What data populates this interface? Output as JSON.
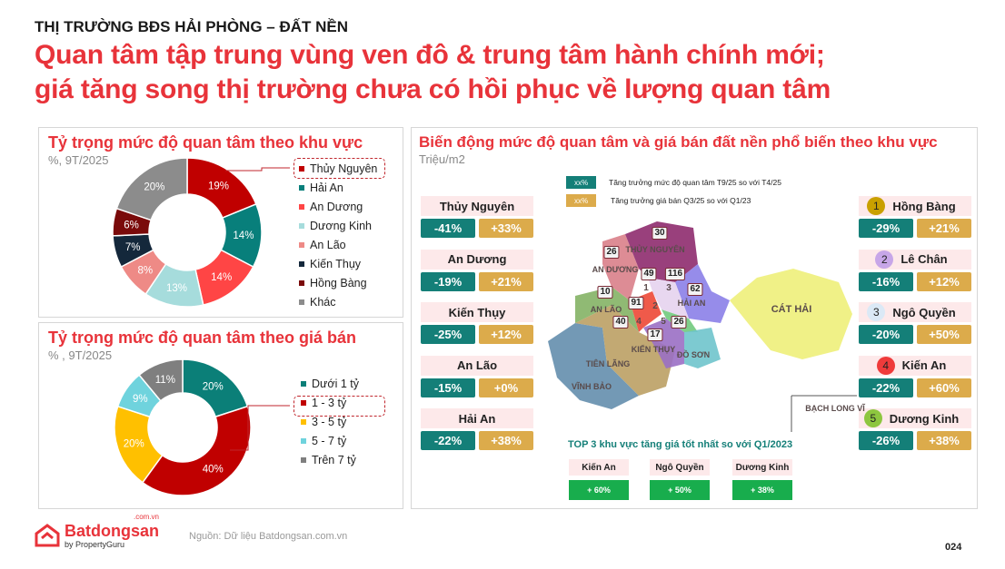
{
  "header": {
    "kicker": "THỊ TRƯỜNG BĐS HẢI PHÒNG – ĐẤT NỀN",
    "headline_1": "Quan tâm tập trung vùng ven đô & trung tâm hành chính mới;",
    "headline_2": "giá tăng song thị trường chưa có hồi phục về lượng quan tâm"
  },
  "chart_data": [
    {
      "type": "pie",
      "donut": true,
      "title": "Tỷ trọng mức độ quan tâm theo khu vực",
      "subtitle": "%, 9T/2025",
      "highlighted": "Thủy Nguyên",
      "legend_position": "right",
      "categories": [
        "Thủy Nguyên",
        "Hải An",
        "An Dương",
        "Dương Kinh",
        "An Lão",
        "Kiến Thụy",
        "Hồng Bàng",
        "Khác"
      ],
      "values": [
        19,
        14,
        14,
        13,
        8,
        7,
        6,
        20
      ],
      "labels": [
        "19%",
        "14%",
        "14%",
        "13%",
        "8%",
        "7%",
        "6%",
        "20%"
      ],
      "colors": [
        "#c00000",
        "#087f7b",
        "#ff4545",
        "#a6dcdc",
        "#ee8a86",
        "#14283b",
        "#7a0a0a",
        "#8c8c8c"
      ]
    },
    {
      "type": "pie",
      "donut": true,
      "title": "Tỷ trọng mức độ quan tâm theo giá bán",
      "subtitle": "% , 9T/2025",
      "highlighted": "1 - 3 tỷ",
      "legend_position": "right",
      "categories": [
        "Dưới 1 tỷ",
        "1 - 3 tỷ",
        "3 - 5 tỷ",
        "5 - 7 tỷ",
        "Trên 7 tỷ"
      ],
      "values": [
        20,
        40,
        20,
        9,
        11
      ],
      "labels": [
        "20%",
        "40%",
        "20%",
        "9%",
        "11%"
      ],
      "colors": [
        "#0b7f78",
        "#c00000",
        "#ffc000",
        "#6fd3dd",
        "#7f7f7f"
      ]
    }
  ],
  "map_panel": {
    "title": "Biến động mức độ quan tâm và giá bán đất nền phổ biến theo khu vực",
    "subtitle": "Triệu/m2",
    "legend": [
      {
        "swatch": "xx%",
        "text": "Tăng trưởng mức độ quan tâm T9/25 so với T4/25",
        "color": "#147f78"
      },
      {
        "swatch": "xx%",
        "text": "Tăng trưởng giá bán Q3/25 so với Q1/23",
        "color": "#dcab4b"
      }
    ],
    "left_cards": [
      {
        "name": "Thủy Nguyên",
        "interest": "-41%",
        "price": "+33%"
      },
      {
        "name": "An Dương",
        "interest": "-19%",
        "price": "+21%"
      },
      {
        "name": "Kiến Thụy",
        "interest": "-25%",
        "price": "+12%"
      },
      {
        "name": "An Lão",
        "interest": "-15%",
        "price": "+0%"
      },
      {
        "name": "Hải An",
        "interest": "-22%",
        "price": "+38%"
      }
    ],
    "right_cards": [
      {
        "num": "1",
        "name": "Hồng Bàng",
        "interest": "-29%",
        "price": "+21%",
        "color": "#c9a000"
      },
      {
        "num": "2",
        "name": "Lê Chân",
        "interest": "-16%",
        "price": "+12%",
        "color": "#c7a6e8"
      },
      {
        "num": "3",
        "name": "Ngô Quyền",
        "interest": "-20%",
        "price": "+50%",
        "color": "#dbe9f6"
      },
      {
        "num": "4",
        "name": "Kiến An",
        "interest": "-22%",
        "price": "+60%",
        "color": "#ef3b3b"
      },
      {
        "num": "5",
        "name": "Dương Kinh",
        "interest": "-26%",
        "price": "+38%",
        "color": "#8dc63f"
      }
    ],
    "map": {
      "districts": [
        "THỦY NGUYÊN",
        "AN DƯƠNG",
        "AN LÃO",
        "HẢI AN",
        "KIẾN THỤY",
        "ĐỒ SƠN",
        "TIÊN LÃNG",
        "VĨNH BẢO",
        "CÁT HẢI",
        "BẠCH LONG VĨ"
      ],
      "prices": [
        "30",
        "26",
        "49",
        "116",
        "10",
        "91",
        "62",
        "40",
        "26",
        "17"
      ],
      "numbers": [
        "1",
        "2",
        "3",
        "4",
        "5"
      ]
    },
    "top3": {
      "title": "TOP 3 khu vực tăng giá tốt nhất so với Q1/2023",
      "items": [
        {
          "name": "Kiến An",
          "value": "+ 60%"
        },
        {
          "name": "Ngô Quyền",
          "value": "+ 50%"
        },
        {
          "name": "Dương Kinh",
          "value": "+ 38%"
        }
      ]
    }
  },
  "footer": {
    "brand": "Batdongsan",
    "brand_suffix": ".com.vn",
    "brand_sub": "by PropertyGuru",
    "source": "Nguồn: Dữ liệu Batdongsan.com.vn",
    "page": "024"
  }
}
